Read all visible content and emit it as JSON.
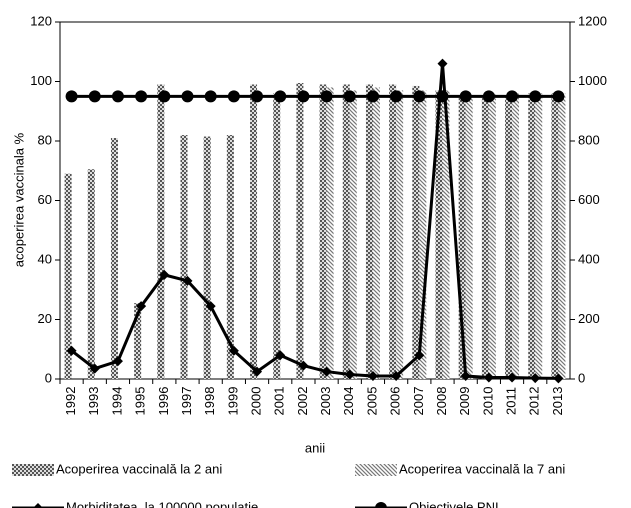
{
  "chart_data": {
    "type": "bar",
    "categories": [
      "1992",
      "1993",
      "1994",
      "1995",
      "1996",
      "1997",
      "1998",
      "1999",
      "2000",
      "2001",
      "2002",
      "2003",
      "2004",
      "2005",
      "2006",
      "2007",
      "2008",
      "2009",
      "2010",
      "2011",
      "2012",
      "2013"
    ],
    "xlabel": "anii",
    "ylabel": "acoperirea vaccinala %",
    "ylim": [
      0,
      120
    ],
    "yticks": [
      0,
      20,
      40,
      60,
      80,
      100,
      120
    ],
    "y2lim": [
      0,
      1200
    ],
    "y2ticks": [
      0,
      200,
      400,
      600,
      800,
      1000,
      1200
    ],
    "series": [
      {
        "name": "Acoperirea vaccinală la 2 ani",
        "type": "bar",
        "color": "#555555",
        "values": [
          69,
          70.5,
          81,
          25.5,
          99,
          82,
          81.5,
          82,
          99,
          96,
          99.5,
          99,
          99,
          99,
          99,
          98.5,
          97,
          95,
          95,
          95,
          96,
          96
        ]
      },
      {
        "name": "Acoperirea vaccinală la 7 ani",
        "type": "bar",
        "color": "#777777",
        "values": [
          null,
          null,
          null,
          null,
          null,
          null,
          null,
          null,
          null,
          null,
          null,
          98,
          97,
          98,
          97,
          97,
          97,
          96,
          96,
          96,
          96,
          96
        ]
      },
      {
        "name": "Morbiditatea  la 100000 populatie",
        "type": "line",
        "axis": "y2",
        "marker": "diamond",
        "color": "#000000",
        "values": [
          95,
          35,
          60,
          245,
          350,
          330,
          245,
          95,
          25,
          80,
          45,
          25,
          15,
          10,
          10,
          80,
          1060,
          10,
          5,
          5,
          3,
          2
        ]
      },
      {
        "name": "Obiectivele PNI",
        "type": "line",
        "marker": "circle",
        "color": "#000000",
        "values": [
          95,
          95,
          95,
          95,
          95,
          95,
          95,
          95,
          95,
          95,
          95,
          95,
          95,
          95,
          95,
          95,
          95,
          95,
          95,
          95,
          95,
          95
        ]
      }
    ]
  }
}
